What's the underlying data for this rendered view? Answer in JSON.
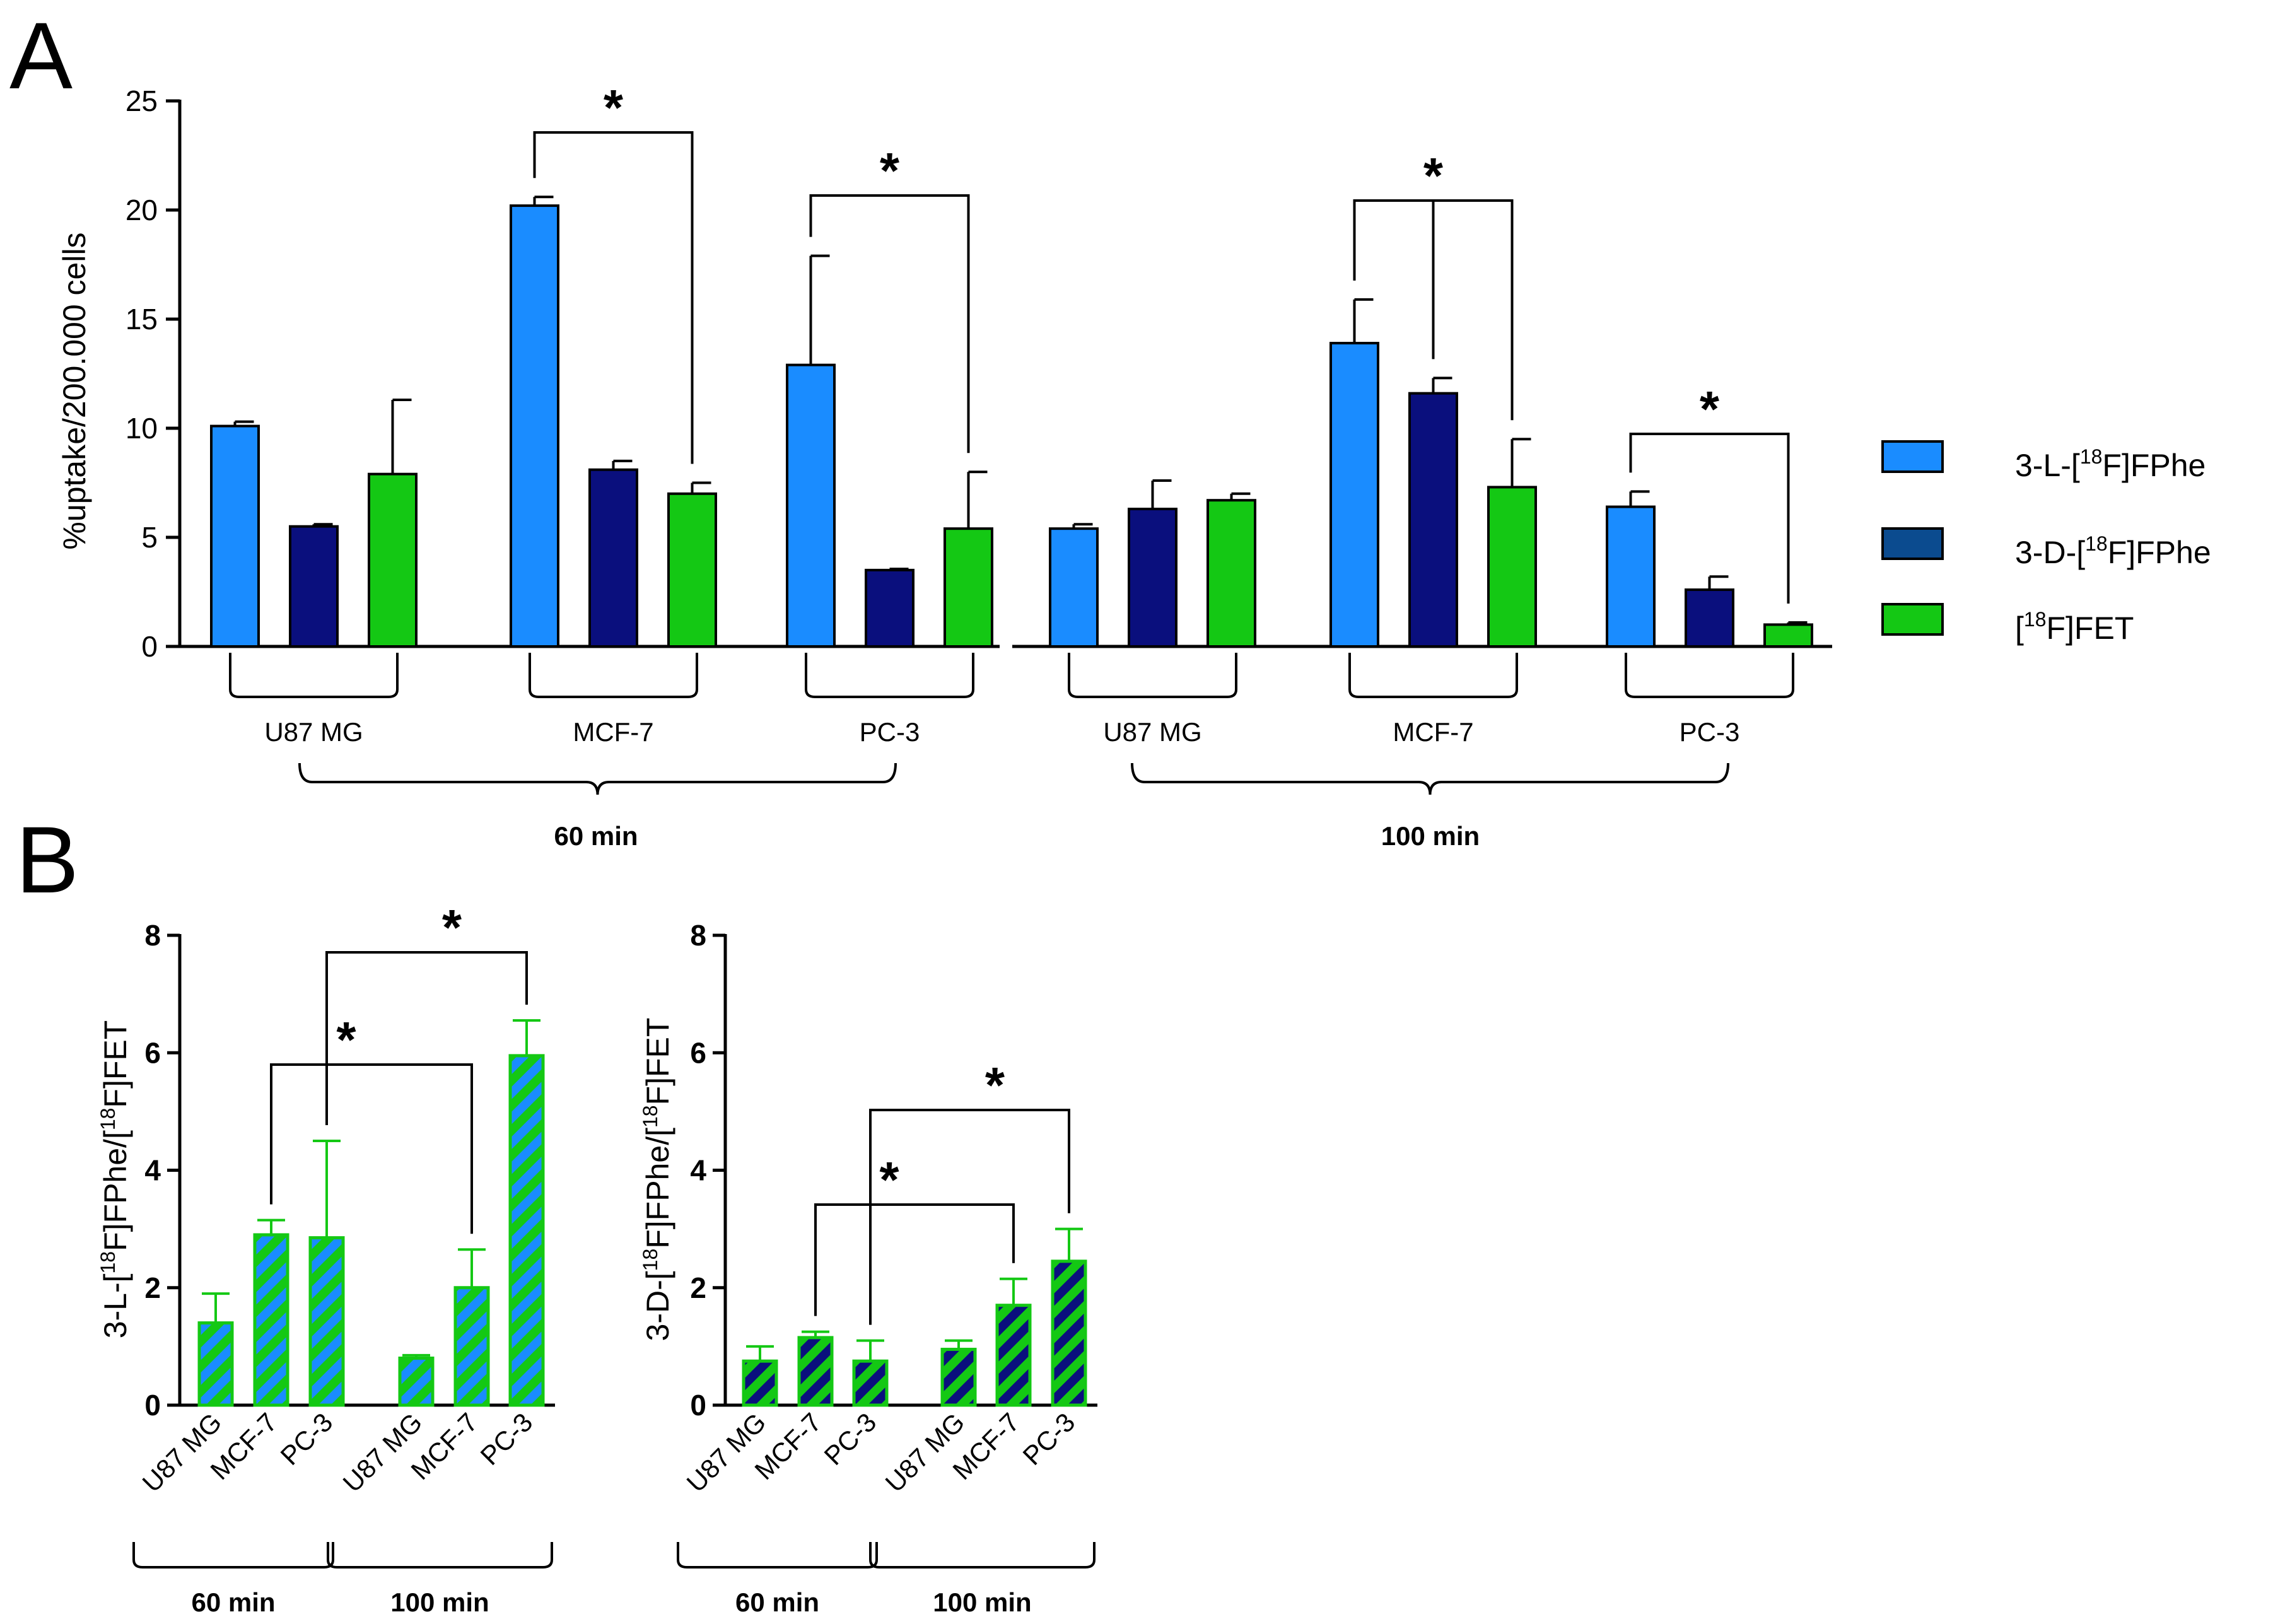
{
  "colors": {
    "l_fphe": "#1a8cff",
    "d_fphe": "#0a0f7d",
    "fet": "#14c814",
    "legend_d_fphe": "#0b4b8f"
  },
  "panels": {
    "a_label": "A",
    "b_label": "B"
  },
  "legend": {
    "l_prefix": "3-L-[",
    "l_sup": "18",
    "l_suffix": "F]FPhe",
    "d_prefix": "3-D-[",
    "d_sup": "18",
    "d_suffix": "F]FPhe",
    "fet_prefix": "[",
    "fet_sup": "18",
    "fet_suffix": "F]FET"
  },
  "chart_data": [
    {
      "id": "A",
      "type": "bar",
      "ylabel": "%uptake/200.000 cells",
      "ylim": [
        0,
        25
      ],
      "yticks": [
        0,
        5,
        10,
        15,
        20,
        25
      ],
      "cell_lines": [
        "U87 MG",
        "MCF-7",
        "PC-3"
      ],
      "timepoints": [
        "60 min",
        "100 min"
      ],
      "series": [
        {
          "name": "3-L-[18F]FPhe",
          "values": [
            10.1,
            20.2,
            12.9,
            5.4,
            13.9,
            6.4
          ],
          "errors": [
            0.2,
            0.4,
            5.0,
            0.2,
            2.0,
            0.7
          ]
        },
        {
          "name": "3-D-[18F]FPhe",
          "values": [
            5.5,
            8.1,
            3.5,
            6.3,
            11.6,
            2.6
          ],
          "errors": [
            0.1,
            0.4,
            0.05,
            1.3,
            0.7,
            0.6
          ]
        },
        {
          "name": "[18F]FET",
          "values": [
            7.9,
            7.0,
            5.4,
            6.7,
            7.3,
            1.0
          ],
          "errors": [
            3.4,
            0.5,
            2.6,
            0.3,
            2.2,
            0.1
          ]
        }
      ],
      "significance": [
        {
          "label": "*",
          "group": 1,
          "from": 0,
          "to": 2
        },
        {
          "label": "*",
          "group": 2,
          "from": 0,
          "to": 2
        },
        {
          "label": "*",
          "group": 4,
          "from": 0,
          "to": 2,
          "mid": 1
        },
        {
          "label": "*",
          "group": 5,
          "from": 0,
          "to": 2
        }
      ]
    },
    {
      "id": "B-left",
      "type": "bar",
      "ylabel_prefix": "3-L-[",
      "ylabel_sup1": "18",
      "ylabel_mid": "F]FPhe/[",
      "ylabel_sup2": "18",
      "ylabel_suffix": "F]FET",
      "ylim": [
        0,
        8
      ],
      "yticks": [
        0,
        2,
        4,
        6,
        8
      ],
      "categories": [
        "U87 MG",
        "MCF-7",
        "PC-3",
        "U87 MG",
        "MCF-7",
        "PC-3"
      ],
      "groups": [
        "60 min",
        "100 min"
      ],
      "values": [
        1.4,
        2.9,
        2.85,
        0.8,
        2.0,
        5.95
      ],
      "errors": [
        0.5,
        0.25,
        1.65,
        0.05,
        0.65,
        0.6
      ],
      "significance": [
        {
          "label": "*",
          "from": 1,
          "to": 4
        },
        {
          "label": "*",
          "from": 2,
          "to": 5
        }
      ]
    },
    {
      "id": "B-right",
      "type": "bar",
      "ylabel_prefix": "3-D-[",
      "ylabel_sup1": "18",
      "ylabel_mid": "F]FPhe/[",
      "ylabel_sup2": "18",
      "ylabel_suffix": "F]FET",
      "ylim": [
        0,
        8
      ],
      "yticks": [
        0,
        2,
        4,
        6,
        8
      ],
      "categories": [
        "U87 MG",
        "MCF-7",
        "PC-3",
        "U87 MG",
        "MCF-7",
        "PC-3"
      ],
      "groups": [
        "60 min",
        "100 min"
      ],
      "values": [
        0.75,
        1.15,
        0.75,
        0.95,
        1.7,
        2.45
      ],
      "errors": [
        0.25,
        0.1,
        0.35,
        0.15,
        0.45,
        0.55
      ],
      "significance": [
        {
          "label": "*",
          "from": 1,
          "to": 4
        },
        {
          "label": "*",
          "from": 2,
          "to": 5
        }
      ]
    }
  ]
}
